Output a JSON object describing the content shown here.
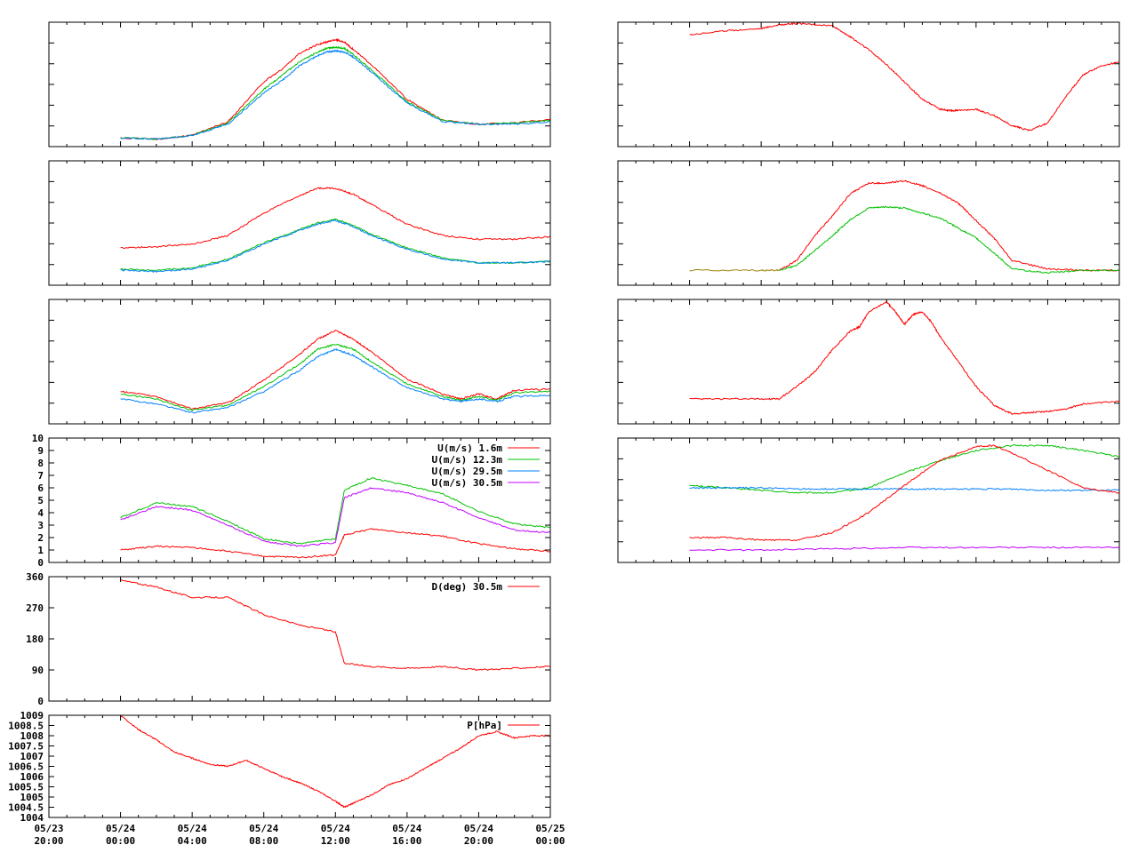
{
  "colors": {
    "red": "#ff0000",
    "green": "#00c000",
    "blue": "#0080ff",
    "purple": "#c000ff",
    "olive": "#a08000",
    "frame": "#000000",
    "background": "#ffffff"
  },
  "time_axis": {
    "range_hours": [
      -4,
      24
    ],
    "tick_hours": [
      -4,
      0,
      4,
      8,
      12,
      16,
      20,
      24
    ],
    "tick_labels": [
      [
        "05/23",
        "20:00"
      ],
      [
        "05/24",
        "00:00"
      ],
      [
        "05/24",
        "04:00"
      ],
      [
        "05/24",
        "08:00"
      ],
      [
        "05/24",
        "12:00"
      ],
      [
        "05/24",
        "16:00"
      ],
      [
        "05/24",
        "20:00"
      ],
      [
        "05/25",
        "00:00"
      ]
    ]
  },
  "chart_data": [
    {
      "id": "left-1",
      "type": "line",
      "ylim": [
        0,
        1
      ],
      "show_yticks": false,
      "series": [
        {
          "color": "red",
          "x": [
            0,
            2,
            4,
            6,
            8,
            9,
            10,
            11,
            11.5,
            12,
            12.5,
            13,
            14,
            16,
            18,
            20,
            22,
            24
          ],
          "y": [
            0.07,
            0.06,
            0.09,
            0.2,
            0.52,
            0.62,
            0.75,
            0.82,
            0.84,
            0.86,
            0.84,
            0.78,
            0.66,
            0.38,
            0.21,
            0.18,
            0.19,
            0.22
          ]
        },
        {
          "color": "green",
          "x": [
            0,
            2,
            4,
            6,
            8,
            9,
            10,
            11,
            11.5,
            12,
            12.5,
            13,
            14,
            16,
            18,
            20,
            22,
            24
          ],
          "y": [
            0.07,
            0.06,
            0.09,
            0.19,
            0.46,
            0.57,
            0.68,
            0.76,
            0.79,
            0.8,
            0.79,
            0.74,
            0.62,
            0.36,
            0.21,
            0.18,
            0.19,
            0.21
          ]
        },
        {
          "color": "blue",
          "x": [
            0,
            2,
            4,
            6,
            8,
            9,
            10,
            11,
            11.5,
            12,
            12.5,
            13,
            14,
            16,
            18,
            20,
            22,
            24
          ],
          "y": [
            0.07,
            0.06,
            0.09,
            0.18,
            0.43,
            0.53,
            0.65,
            0.73,
            0.76,
            0.77,
            0.76,
            0.72,
            0.6,
            0.35,
            0.2,
            0.18,
            0.18,
            0.2
          ]
        }
      ]
    },
    {
      "id": "left-2",
      "type": "line",
      "ylim": [
        0,
        1
      ],
      "show_yticks": false,
      "series": [
        {
          "color": "red",
          "x": [
            0,
            2,
            4,
            6,
            8,
            10,
            11,
            12,
            13,
            14,
            16,
            18,
            20,
            22,
            24
          ],
          "y": [
            0.3,
            0.31,
            0.33,
            0.4,
            0.58,
            0.72,
            0.78,
            0.78,
            0.73,
            0.65,
            0.49,
            0.4,
            0.37,
            0.37,
            0.39
          ]
        },
        {
          "color": "green",
          "x": [
            0,
            2,
            4,
            6,
            8,
            10,
            11,
            12,
            13,
            14,
            16,
            18,
            20,
            22,
            24
          ],
          "y": [
            0.13,
            0.12,
            0.14,
            0.21,
            0.34,
            0.45,
            0.5,
            0.53,
            0.48,
            0.41,
            0.3,
            0.22,
            0.18,
            0.18,
            0.19
          ]
        },
        {
          "color": "blue",
          "x": [
            0,
            2,
            4,
            6,
            8,
            10,
            11,
            12,
            13,
            14,
            16,
            18,
            20,
            22,
            24
          ],
          "y": [
            0.12,
            0.11,
            0.13,
            0.2,
            0.33,
            0.44,
            0.49,
            0.52,
            0.47,
            0.4,
            0.29,
            0.21,
            0.18,
            0.18,
            0.19
          ]
        }
      ]
    },
    {
      "id": "left-3",
      "type": "line",
      "ylim": [
        0,
        1
      ],
      "show_yticks": false,
      "series": [
        {
          "color": "red",
          "x": [
            0,
            2,
            4,
            6,
            8,
            10,
            11,
            12,
            13,
            14,
            16,
            18,
            19,
            20,
            21,
            22,
            24
          ],
          "y": [
            0.26,
            0.22,
            0.12,
            0.17,
            0.35,
            0.56,
            0.68,
            0.75,
            0.68,
            0.58,
            0.36,
            0.24,
            0.2,
            0.24,
            0.2,
            0.27,
            0.28
          ]
        },
        {
          "color": "green",
          "x": [
            0,
            2,
            4,
            6,
            8,
            10,
            11,
            12,
            13,
            14,
            16,
            18,
            19,
            20,
            21,
            22,
            24
          ],
          "y": [
            0.24,
            0.2,
            0.11,
            0.15,
            0.3,
            0.48,
            0.6,
            0.64,
            0.6,
            0.5,
            0.32,
            0.22,
            0.19,
            0.22,
            0.19,
            0.25,
            0.26
          ]
        },
        {
          "color": "blue",
          "x": [
            0,
            2,
            4,
            6,
            8,
            10,
            11,
            12,
            13,
            14,
            16,
            18,
            19,
            20,
            21,
            22,
            24
          ],
          "y": [
            0.2,
            0.16,
            0.09,
            0.13,
            0.26,
            0.43,
            0.54,
            0.6,
            0.55,
            0.46,
            0.29,
            0.2,
            0.18,
            0.2,
            0.18,
            0.22,
            0.23
          ]
        }
      ]
    },
    {
      "id": "left-4",
      "type": "line",
      "ylim": [
        0,
        10
      ],
      "yticks": [
        0,
        1,
        2,
        3,
        4,
        5,
        6,
        7,
        8,
        9,
        10
      ],
      "legend": [
        {
          "label": "U(m/s)  1.6m",
          "color": "red"
        },
        {
          "label": "U(m/s) 12.3m",
          "color": "green"
        },
        {
          "label": "U(m/s) 29.5m",
          "color": "blue"
        },
        {
          "label": "U(m/s) 30.5m",
          "color": "purple"
        }
      ],
      "series": [
        {
          "color": "green",
          "x": [
            0,
            2,
            4,
            6,
            8,
            10,
            12,
            12.5,
            14,
            16,
            18,
            20,
            22,
            24
          ],
          "y": [
            3.6,
            4.8,
            4.5,
            3.3,
            1.9,
            1.5,
            1.9,
            5.8,
            6.8,
            6.2,
            5.5,
            4.1,
            3.1,
            2.8
          ]
        },
        {
          "color": "purple",
          "x": [
            0,
            2,
            4,
            6,
            8,
            10,
            12,
            12.5,
            14,
            16,
            18,
            20,
            22,
            24
          ],
          "y": [
            3.4,
            4.5,
            4.2,
            3.0,
            1.7,
            1.3,
            1.6,
            5.2,
            6.0,
            5.6,
            4.8,
            3.6,
            2.6,
            2.4
          ]
        },
        {
          "color": "red",
          "x": [
            0,
            2,
            4,
            6,
            8,
            10,
            12,
            12.5,
            14,
            16,
            18,
            20,
            22,
            24
          ],
          "y": [
            1.0,
            1.3,
            1.2,
            0.9,
            0.5,
            0.4,
            0.6,
            2.2,
            2.7,
            2.4,
            2.1,
            1.5,
            1.1,
            0.9
          ]
        }
      ]
    },
    {
      "id": "left-5",
      "type": "line",
      "ylim": [
        0,
        360
      ],
      "yticks": [
        0,
        90,
        180,
        270,
        360
      ],
      "legend": [
        {
          "label": "D(deg)  30.5m",
          "color": "red"
        }
      ],
      "series": [
        {
          "color": "red",
          "x": [
            0,
            2,
            4,
            6,
            8,
            10,
            12,
            12.5,
            14,
            16,
            18,
            20,
            22,
            24
          ],
          "y": [
            350,
            330,
            300,
            300,
            250,
            220,
            200,
            110,
            100,
            95,
            100,
            90,
            95,
            100
          ]
        }
      ]
    },
    {
      "id": "left-6",
      "type": "line",
      "ylim": [
        1004,
        1009
      ],
      "yticks": [
        1004,
        1004.5,
        1005,
        1005.5,
        1006,
        1006.5,
        1007,
        1007.5,
        1008,
        1008.5,
        1009
      ],
      "legend": [
        {
          "label": "P[hPa]",
          "color": "red"
        }
      ],
      "show_xlabels": true,
      "series": [
        {
          "color": "red",
          "x": [
            0,
            1,
            2,
            3,
            4,
            5,
            6,
            7,
            8,
            9,
            10,
            11,
            12,
            12.5,
            13,
            14,
            15,
            16,
            17,
            18,
            19,
            20,
            21,
            22,
            23,
            24
          ],
          "y": [
            1009,
            1008.3,
            1007.8,
            1007.2,
            1006.9,
            1006.6,
            1006.5,
            1006.8,
            1006.4,
            1006.0,
            1005.7,
            1005.3,
            1004.8,
            1004.5,
            1004.7,
            1005.1,
            1005.6,
            1005.9,
            1006.4,
            1006.9,
            1007.4,
            1008.0,
            1008.2,
            1007.9,
            1008.0,
            1008.0
          ]
        }
      ]
    },
    {
      "id": "right-1",
      "type": "line",
      "ylim": [
        0,
        1
      ],
      "show_yticks": false,
      "series": [
        {
          "color": "red",
          "x": [
            0,
            2,
            4,
            5,
            6,
            8,
            9,
            10,
            11,
            12,
            13,
            14,
            14.5,
            15,
            16,
            17,
            18,
            19,
            20,
            21,
            22,
            23,
            24
          ],
          "y": [
            0.9,
            0.93,
            0.95,
            0.98,
            0.99,
            0.97,
            0.88,
            0.78,
            0.66,
            0.52,
            0.38,
            0.3,
            0.29,
            0.29,
            0.3,
            0.25,
            0.17,
            0.13,
            0.19,
            0.4,
            0.58,
            0.65,
            0.68
          ]
        }
      ]
    },
    {
      "id": "right-2",
      "type": "line",
      "ylim": [
        0,
        1
      ],
      "show_yticks": false,
      "series": [
        {
          "color": "olive",
          "x": [
            0,
            4,
            5
          ],
          "y": [
            0.12,
            0.12,
            0.12
          ]
        },
        {
          "color": "red",
          "x": [
            5,
            6,
            7,
            8,
            9,
            10,
            11,
            12,
            13,
            14,
            15,
            16,
            17,
            18,
            20,
            22,
            24
          ],
          "y": [
            0.12,
            0.2,
            0.4,
            0.56,
            0.74,
            0.82,
            0.82,
            0.84,
            0.8,
            0.74,
            0.66,
            0.52,
            0.38,
            0.2,
            0.13,
            0.12,
            0.12
          ]
        },
        {
          "color": "green",
          "x": [
            5,
            6,
            7,
            8,
            9,
            10,
            11,
            12,
            13,
            14,
            15,
            16,
            17,
            18,
            20,
            22,
            24
          ],
          "y": [
            0.12,
            0.16,
            0.28,
            0.4,
            0.53,
            0.62,
            0.63,
            0.62,
            0.58,
            0.54,
            0.46,
            0.38,
            0.26,
            0.13,
            0.1,
            0.12,
            0.12
          ]
        }
      ]
    },
    {
      "id": "right-3",
      "type": "line",
      "ylim": [
        0,
        1
      ],
      "show_yticks": false,
      "series": [
        {
          "color": "red",
          "x": [
            0,
            2,
            4,
            5,
            6,
            7,
            8,
            9,
            9.5,
            10,
            11,
            11.5,
            12,
            12.5,
            13,
            13.5,
            14,
            15,
            16,
            17,
            18,
            19,
            20,
            21,
            22,
            24
          ],
          "y": [
            0.2,
            0.2,
            0.2,
            0.2,
            0.3,
            0.42,
            0.6,
            0.75,
            0.78,
            0.9,
            0.98,
            0.9,
            0.8,
            0.88,
            0.9,
            0.82,
            0.7,
            0.5,
            0.3,
            0.15,
            0.08,
            0.09,
            0.1,
            0.12,
            0.16,
            0.18
          ]
        }
      ]
    },
    {
      "id": "right-4",
      "type": "line",
      "ylim": [
        0,
        1
      ],
      "show_yticks": false,
      "series": [
        {
          "color": "green",
          "x": [
            0,
            2,
            4,
            6,
            8,
            10,
            12,
            14,
            16,
            18,
            20,
            22,
            24
          ],
          "y": [
            0.62,
            0.6,
            0.58,
            0.56,
            0.56,
            0.6,
            0.72,
            0.82,
            0.9,
            0.94,
            0.94,
            0.9,
            0.85
          ]
        },
        {
          "color": "blue",
          "x": [
            0,
            2,
            4,
            6,
            8,
            10,
            12,
            14,
            16,
            18,
            20,
            22,
            24
          ],
          "y": [
            0.6,
            0.6,
            0.6,
            0.59,
            0.59,
            0.59,
            0.59,
            0.59,
            0.59,
            0.59,
            0.58,
            0.58,
            0.58
          ]
        },
        {
          "color": "red",
          "x": [
            0,
            2,
            4,
            6,
            8,
            10,
            12,
            14,
            16,
            17,
            18,
            20,
            22,
            24
          ],
          "y": [
            0.2,
            0.2,
            0.18,
            0.18,
            0.24,
            0.4,
            0.62,
            0.82,
            0.93,
            0.94,
            0.88,
            0.74,
            0.6,
            0.56
          ]
        },
        {
          "color": "purple",
          "x": [
            0,
            4,
            8,
            12,
            16,
            20,
            24
          ],
          "y": [
            0.1,
            0.1,
            0.11,
            0.12,
            0.12,
            0.12,
            0.12
          ]
        }
      ]
    }
  ]
}
